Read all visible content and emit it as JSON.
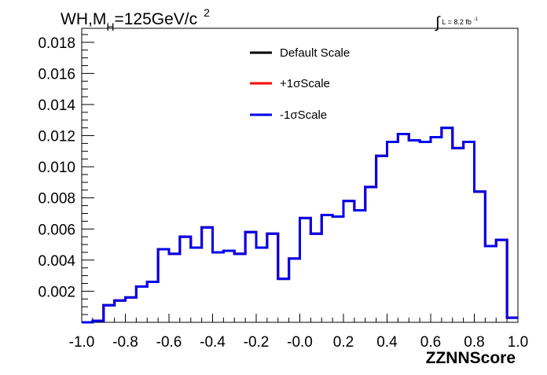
{
  "chart_data": {
    "type": "line",
    "title_parts": {
      "main": "WH,M",
      "sub": "H",
      "rest": "=125GeV/c",
      "sup": "2"
    },
    "lumi_parts": {
      "integral": "∫",
      "text": "L = 8.2 fb",
      "sup": "-1"
    },
    "xlabel": "ZZNNScore",
    "ylabel": "",
    "xlim": [
      -1.0,
      1.0
    ],
    "ylim": [
      0.0,
      0.0189
    ],
    "x_ticks": [
      "-1.0",
      "-0.8",
      "-0.6",
      "-0.4",
      "-0.2",
      "-0.0",
      "0.2",
      "0.4",
      "0.6",
      "0.8",
      "1.0"
    ],
    "y_ticks": [
      "0.002",
      "0.004",
      "0.006",
      "0.008",
      "0.010",
      "0.012",
      "0.014",
      "0.016",
      "0.018"
    ],
    "grid": false,
    "legend_position": "top-center",
    "bin_edges": [
      -1.0,
      -0.95,
      -0.9,
      -0.85,
      -0.8,
      -0.75,
      -0.7,
      -0.65,
      -0.6,
      -0.55,
      -0.5,
      -0.45,
      -0.4,
      -0.35,
      -0.3,
      -0.25,
      -0.2,
      -0.15,
      -0.1,
      -0.05,
      0.0,
      0.05,
      0.1,
      0.15,
      0.2,
      0.25,
      0.3,
      0.35,
      0.4,
      0.45,
      0.5,
      0.55,
      0.6,
      0.65,
      0.7,
      0.75,
      0.8,
      0.85,
      0.9,
      0.95,
      1.0
    ],
    "series": [
      {
        "name": "Default Scale",
        "color": "#000000",
        "values": [
          0.0,
          0.0001,
          0.0011,
          0.0014,
          0.0016,
          0.0023,
          0.0026,
          0.0047,
          0.0044,
          0.0055,
          0.0048,
          0.0061,
          0.0045,
          0.0046,
          0.0044,
          0.0058,
          0.0048,
          0.0057,
          0.0028,
          0.0041,
          0.0067,
          0.0057,
          0.0069,
          0.0068,
          0.0078,
          0.0072,
          0.0087,
          0.0107,
          0.0116,
          0.0121,
          0.0117,
          0.0116,
          0.0119,
          0.0125,
          0.0112,
          0.0116,
          0.0084,
          0.0049,
          0.0053,
          0.0003
        ]
      },
      {
        "name": "+1σScale",
        "color": "#ff0000",
        "values": [
          0.0,
          0.0001,
          0.0011,
          0.0014,
          0.0016,
          0.0023,
          0.0026,
          0.0047,
          0.0044,
          0.0055,
          0.0048,
          0.0061,
          0.0045,
          0.0046,
          0.0044,
          0.0058,
          0.0048,
          0.0057,
          0.0028,
          0.0041,
          0.0067,
          0.0057,
          0.0069,
          0.0068,
          0.0078,
          0.0072,
          0.0087,
          0.0107,
          0.0116,
          0.0121,
          0.0117,
          0.0116,
          0.0119,
          0.0125,
          0.0112,
          0.0116,
          0.0084,
          0.0049,
          0.0053,
          0.0003
        ]
      },
      {
        "name": "-1σScale",
        "color": "#0000ee",
        "values": [
          0.0,
          0.0001,
          0.0011,
          0.0014,
          0.0016,
          0.0023,
          0.0026,
          0.0047,
          0.0044,
          0.0055,
          0.0048,
          0.0061,
          0.0045,
          0.0046,
          0.0044,
          0.0058,
          0.0048,
          0.0057,
          0.0028,
          0.0041,
          0.0067,
          0.0057,
          0.0069,
          0.0068,
          0.0078,
          0.0072,
          0.0087,
          0.0107,
          0.0116,
          0.0121,
          0.0117,
          0.0116,
          0.0119,
          0.0125,
          0.0112,
          0.0116,
          0.0084,
          0.0049,
          0.0053,
          0.0003
        ]
      }
    ]
  }
}
